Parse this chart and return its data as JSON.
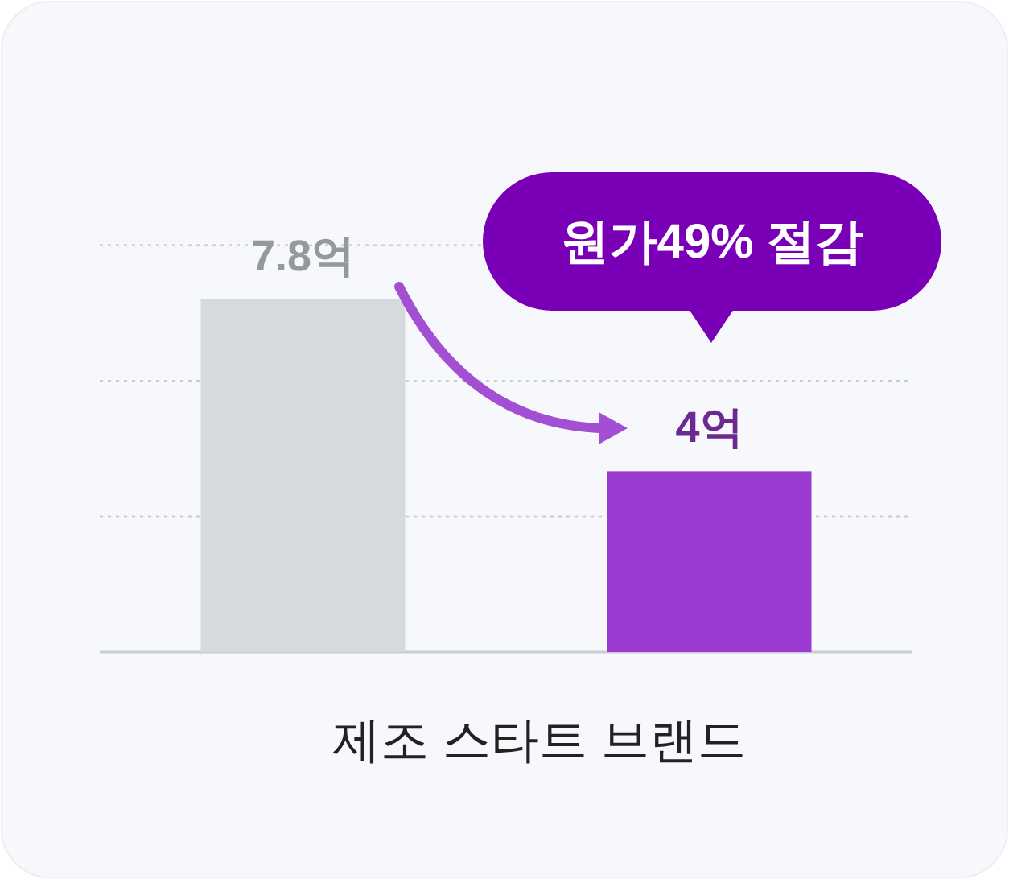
{
  "chart_data": {
    "type": "bar",
    "categories": [
      null,
      null
    ],
    "series": [
      {
        "values": [
          7.8,
          4
        ],
        "colors": [
          "#d6dadf",
          "#9a3ad0"
        ],
        "value_labels": [
          "7.8억",
          "4억"
        ]
      }
    ],
    "ref_lines": [
      {
        "axis": "y",
        "value": 3,
        "color": "#c9ccd3",
        "line_style": "dotted"
      },
      {
        "axis": "y",
        "value": 6,
        "color": "#c9ccd3",
        "line_style": "dotted"
      },
      {
        "axis": "y",
        "value": 9,
        "color": "#c9ccd3",
        "line_style": "dotted"
      }
    ],
    "xlabel": "제조 스타트 브랜드",
    "annotations": [
      "원가49% 절감"
    ]
  }
}
